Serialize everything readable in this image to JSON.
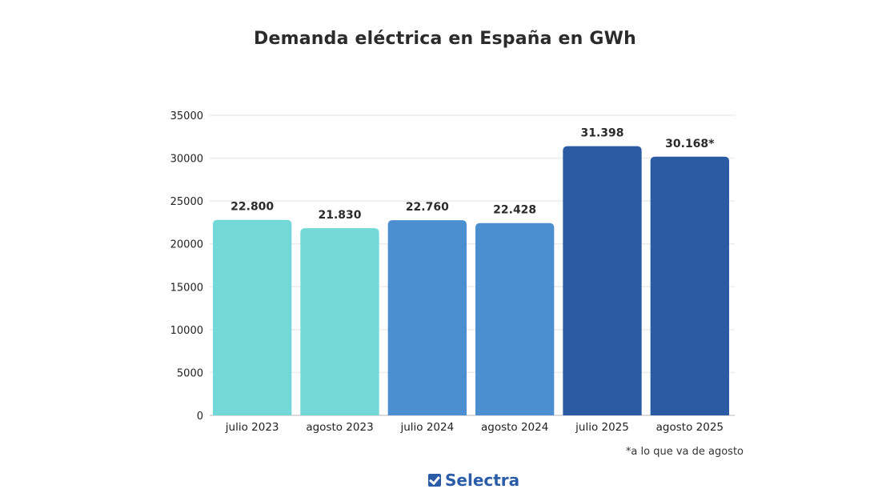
{
  "chart_data": {
    "type": "bar",
    "title": "Demanda eléctrica en España en GWh",
    "xlabel": "",
    "ylabel": "",
    "ylim": [
      0,
      35000
    ],
    "yticks": [
      0,
      5000,
      10000,
      15000,
      20000,
      25000,
      30000,
      35000
    ],
    "ytick_labels": [
      "0",
      "5000",
      "10000",
      "15000",
      "20000",
      "25000",
      "30000",
      "35000"
    ],
    "grid": true,
    "categories": [
      "julio 2023",
      "agosto 2023",
      "julio 2024",
      "agosto 2024",
      "julio 2025",
      "agosto 2025"
    ],
    "values": [
      22800,
      21830,
      22760,
      22428,
      31398,
      30168
    ],
    "data_labels": [
      "22.800",
      "21.830",
      "22.760",
      "22.428",
      "31.398",
      "30.168*"
    ],
    "bar_colors": [
      "#72d8d8",
      "#72d8d8",
      "#4b8fd0",
      "#4b8fd0",
      "#2b5ca3",
      "#2b5ca3"
    ],
    "annotation": "*a lo que va de agosto"
  },
  "brand": {
    "name": "Selectra",
    "color": "#2b5ca8"
  }
}
